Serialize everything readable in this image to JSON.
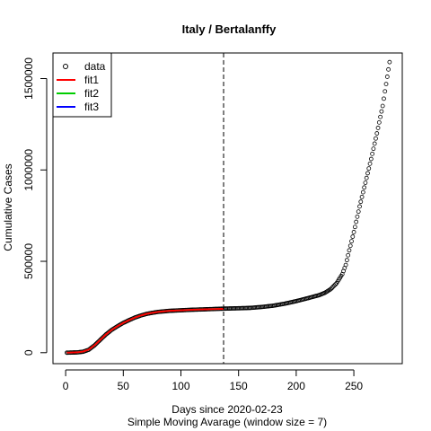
{
  "chart_data": {
    "type": "scatter",
    "title": "Italy / Bertalanffy",
    "xlabel": "Days since 2020-02-23",
    "subtitle": "Simple Moving Avarage (window size = 7)",
    "ylabel": "Cumulative Cases",
    "xlim": [
      -11,
      292
    ],
    "ylim": [
      -60000,
      1640000
    ],
    "x_ticks": [
      0,
      50,
      100,
      150,
      200,
      250
    ],
    "y_ticks": [
      0,
      500000,
      1000000,
      1500000
    ],
    "x_tick_labels": [
      "0",
      "50",
      "100",
      "150",
      "200",
      "250"
    ],
    "y_tick_labels": [
      "0",
      "500000",
      "1000000",
      "1500000"
    ],
    "vline_x": 137,
    "legend": {
      "position": "top-left",
      "entries": [
        {
          "label": "data",
          "kind": "point",
          "color": "#000000"
        },
        {
          "label": "fit1",
          "kind": "line",
          "color": "#ff0000"
        },
        {
          "label": "fit2",
          "kind": "line",
          "color": "#00cd00"
        },
        {
          "label": "fit3",
          "kind": "line",
          "color": "#0000ff"
        }
      ]
    },
    "series": [
      {
        "name": "data",
        "kind": "points",
        "color": "#000000",
        "x_start": 1,
        "x_end": 281,
        "knots": [
          [
            1,
            0
          ],
          [
            10,
            1500
          ],
          [
            15,
            5000
          ],
          [
            20,
            16000
          ],
          [
            25,
            40000
          ],
          [
            30,
            70000
          ],
          [
            35,
            100000
          ],
          [
            40,
            125000
          ],
          [
            45,
            145000
          ],
          [
            50,
            163000
          ],
          [
            55,
            178000
          ],
          [
            60,
            192000
          ],
          [
            65,
            203000
          ],
          [
            70,
            212000
          ],
          [
            75,
            218000
          ],
          [
            80,
            223000
          ],
          [
            90,
            229000
          ],
          [
            100,
            232000
          ],
          [
            110,
            235000
          ],
          [
            120,
            237000
          ],
          [
            137,
            241000
          ],
          [
            150,
            243000
          ],
          [
            160,
            245000
          ],
          [
            170,
            250000
          ],
          [
            180,
            257000
          ],
          [
            190,
            268000
          ],
          [
            200,
            282000
          ],
          [
            210,
            298000
          ],
          [
            220,
            315000
          ],
          [
            225,
            328000
          ],
          [
            230,
            348000
          ],
          [
            235,
            380000
          ],
          [
            240,
            430000
          ],
          [
            243,
            480000
          ],
          [
            246,
            560000
          ],
          [
            250,
            660000
          ],
          [
            255,
            800000
          ],
          [
            260,
            930000
          ],
          [
            265,
            1060000
          ],
          [
            270,
            1200000
          ],
          [
            275,
            1350000
          ],
          [
            281,
            1590000
          ]
        ]
      },
      {
        "name": "fit1",
        "kind": "line",
        "color": "#ff0000",
        "x_range": [
          1,
          137
        ],
        "knots": [
          [
            1,
            0
          ],
          [
            10,
            2000
          ],
          [
            15,
            6000
          ],
          [
            20,
            17000
          ],
          [
            25,
            40000
          ],
          [
            30,
            70000
          ],
          [
            35,
            100000
          ],
          [
            40,
            125000
          ],
          [
            45,
            145000
          ],
          [
            50,
            163000
          ],
          [
            55,
            178000
          ],
          [
            60,
            192000
          ],
          [
            65,
            203000
          ],
          [
            70,
            212000
          ],
          [
            75,
            218000
          ],
          [
            80,
            223000
          ],
          [
            90,
            229000
          ],
          [
            100,
            232000
          ],
          [
            110,
            235000
          ],
          [
            120,
            237000
          ],
          [
            137,
            240000
          ]
        ]
      },
      {
        "name": "fit2",
        "kind": "line",
        "color": "#00cd00",
        "x_range": [
          1,
          137
        ],
        "knots": [
          [
            1,
            0
          ],
          [
            10,
            2000
          ],
          [
            15,
            6000
          ],
          [
            20,
            17000
          ],
          [
            25,
            40000
          ],
          [
            30,
            70000
          ],
          [
            35,
            100000
          ],
          [
            40,
            125000
          ],
          [
            45,
            145000
          ],
          [
            50,
            163000
          ],
          [
            55,
            178000
          ],
          [
            60,
            192000
          ],
          [
            65,
            203000
          ],
          [
            70,
            212000
          ],
          [
            75,
            218000
          ],
          [
            80,
            223000
          ],
          [
            90,
            229000
          ],
          [
            100,
            232000
          ],
          [
            110,
            235000
          ],
          [
            120,
            237000
          ],
          [
            137,
            240000
          ]
        ]
      },
      {
        "name": "fit3",
        "kind": "line",
        "color": "#0000ff",
        "x_range": [
          1,
          137
        ],
        "knots": [
          [
            1,
            0
          ],
          [
            10,
            2000
          ],
          [
            15,
            6000
          ],
          [
            20,
            17000
          ],
          [
            25,
            40000
          ],
          [
            30,
            70000
          ],
          [
            35,
            100000
          ],
          [
            40,
            125000
          ],
          [
            45,
            145000
          ],
          [
            50,
            163000
          ],
          [
            55,
            178000
          ],
          [
            60,
            192000
          ],
          [
            65,
            203000
          ],
          [
            70,
            212000
          ],
          [
            75,
            218000
          ],
          [
            80,
            223000
          ],
          [
            90,
            229000
          ],
          [
            100,
            232000
          ],
          [
            110,
            235000
          ],
          [
            120,
            237000
          ],
          [
            137,
            240000
          ]
        ]
      }
    ]
  }
}
